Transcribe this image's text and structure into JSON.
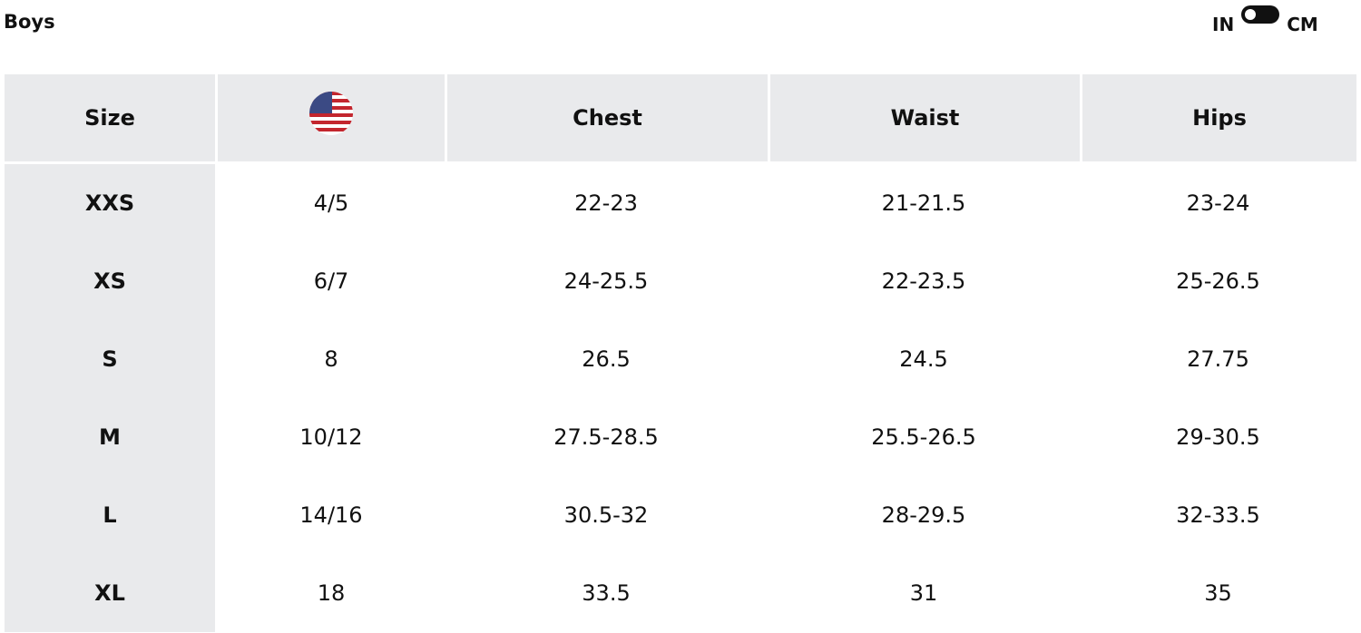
{
  "title": "Boys",
  "unit_toggle": {
    "left_label": "IN",
    "right_label": "CM",
    "selected": "IN"
  },
  "table": {
    "headers": [
      "Size",
      "",
      "Chest",
      "Waist",
      "Hips"
    ],
    "flag_icon": "us-flag-icon",
    "rows": [
      [
        "XXS",
        "4/5",
        "22-23",
        "21-21.5",
        "23-24"
      ],
      [
        "XS",
        "6/7",
        "24-25.5",
        "22-23.5",
        "25-26.5"
      ],
      [
        "S",
        "8",
        "26.5",
        "24.5",
        "27.75"
      ],
      [
        "M",
        "10/12",
        "27.5-28.5",
        "25.5-26.5",
        "29-30.5"
      ],
      [
        "L",
        "14/16",
        "30.5-32",
        "28-29.5",
        "32-33.5"
      ],
      [
        "XL",
        "18",
        "33.5",
        "31",
        "35"
      ]
    ]
  },
  "colors": {
    "header_bg": "#e9eaec",
    "toggle": "#111111"
  }
}
